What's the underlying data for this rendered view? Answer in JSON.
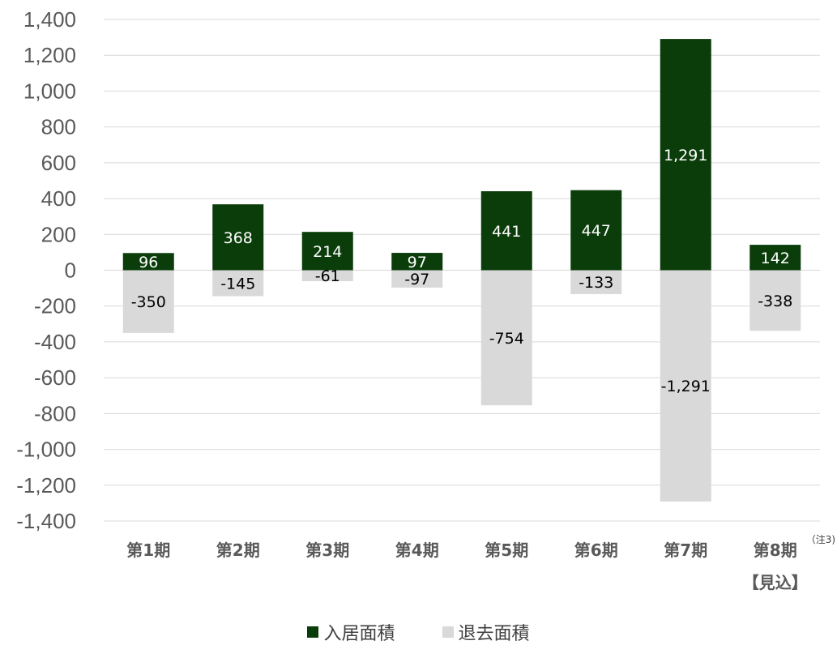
{
  "chart_data": {
    "type": "bar",
    "stacked": true,
    "categories": [
      "第1期",
      "第2期",
      "第3期",
      "第4期",
      "第5期",
      "第6期",
      "第7期",
      "第8期"
    ],
    "category_notes": [
      "",
      "",
      "",
      "",
      "",
      "",
      "",
      "（注3)"
    ],
    "category_sublabels": [
      "",
      "",
      "",
      "",
      "",
      "",
      "",
      "【見込】"
    ],
    "series": [
      {
        "name": "入居面積",
        "color": "#0b3d0b",
        "label_color": "#ffffff",
        "values": [
          96,
          368,
          214,
          97,
          441,
          447,
          1291,
          142
        ]
      },
      {
        "name": "退去面積",
        "color": "#d9d9d9",
        "label_color": "#000000",
        "values": [
          -350,
          -145,
          -61,
          -97,
          -754,
          -133,
          -1291,
          -338
        ]
      }
    ],
    "ylim": [
      -1400,
      1400
    ],
    "yticks": [
      1400,
      1200,
      1000,
      800,
      600,
      400,
      200,
      0,
      -200,
      -400,
      -600,
      -800,
      -1000,
      -1200,
      -1400
    ],
    "ytick_labels": [
      "1,400",
      "1,200",
      "1,000",
      "800",
      "600",
      "400",
      "200",
      "0",
      "-200",
      "-400",
      "-600",
      "-800",
      "-1,000",
      "-1,200",
      "-1,400"
    ],
    "grid": true,
    "legend_position": "bottom"
  }
}
